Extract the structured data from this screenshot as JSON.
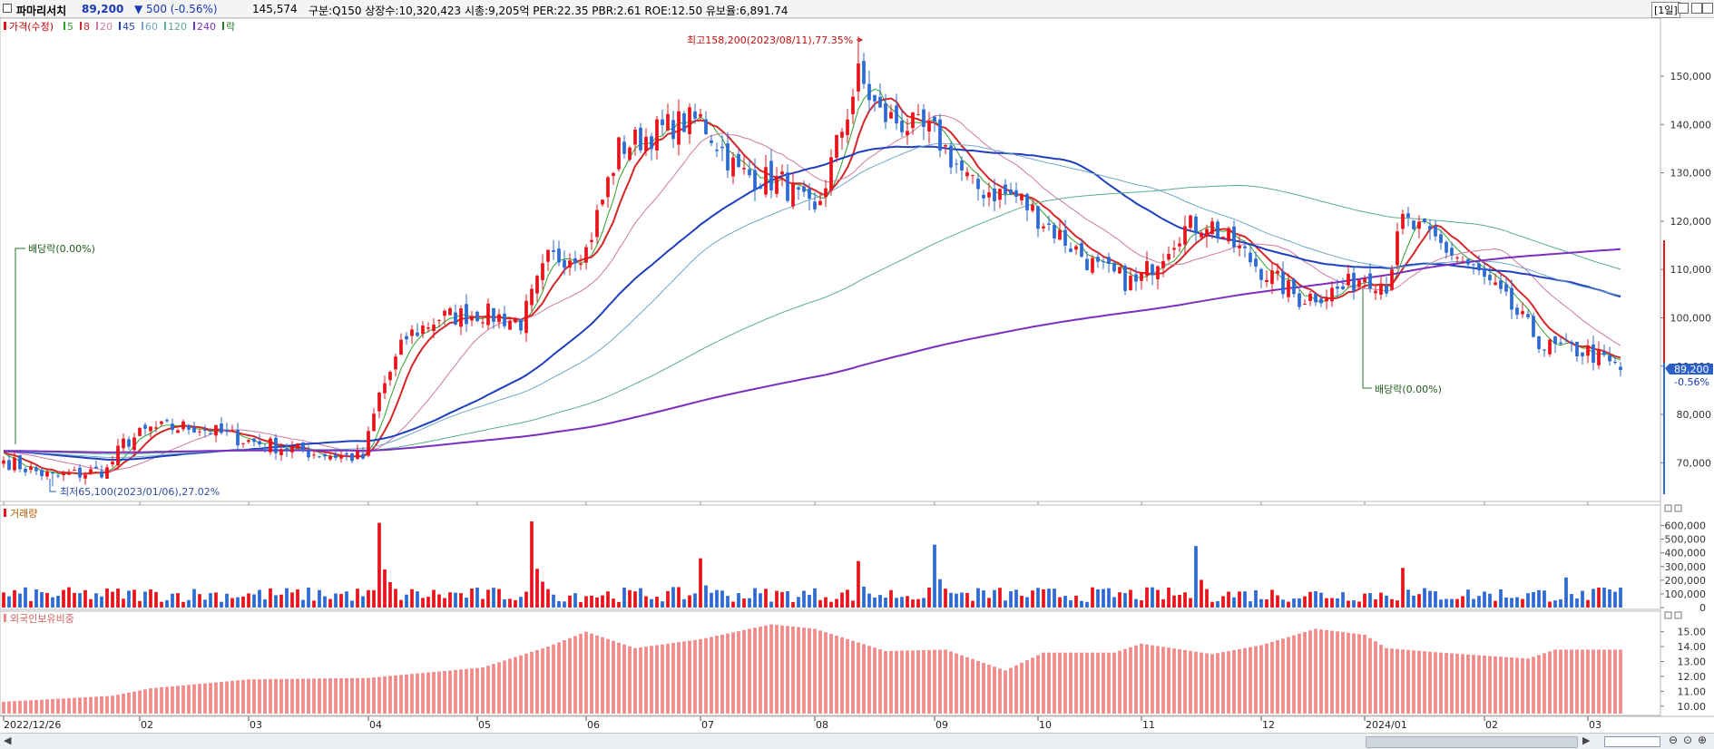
{
  "header": {
    "stock_name": "파마리서치",
    "price": "89,200",
    "change": "▼ 500 (-0.56%)",
    "volume": "145,574",
    "info": "구분:Q150  상장수:10,320,423  시총:9,205억  PER:22.35  PBR:2.61  ROE:12.50  유보율:6,891.74",
    "period": "[1일]"
  },
  "legend": {
    "price_label": "가격(수정)",
    "ma_items": [
      {
        "label": "5",
        "color": "#2ca02c"
      },
      {
        "label": "8",
        "color": "#d62728"
      },
      {
        "label": "20",
        "color": "#cc79a7"
      },
      {
        "label": "45",
        "color": "#1f3fbf"
      },
      {
        "label": "60",
        "color": "#6fa8c8"
      },
      {
        "label": "120",
        "color": "#5aae8c"
      },
      {
        "label": "240",
        "color": "#7b2fbe"
      }
    ],
    "event_label": "락",
    "volume_label": "거래량",
    "foreign_label": "외국인보유비중"
  },
  "annotations": {
    "high": "최고158,200(2023/08/11),77.35%",
    "low": "최저65,100(2023/01/06),27.02%",
    "dividend_1": "배당락(0.00%)",
    "dividend_2": "배당락(0.00%)",
    "last_price_tag": "89,200",
    "last_change_tag": "-0.56%"
  },
  "colors": {
    "up": "#e8141c",
    "down": "#2d6ad2",
    "foreign_bar": "#f08a8a",
    "axis_text": "#333333"
  },
  "chart_data": [
    {
      "type": "candlestick",
      "title": "가격(수정)",
      "ylim": [
        62000,
        162000
      ],
      "y_ticks": [
        "70,000",
        "80,000",
        "90,000",
        "100,000",
        "110,000",
        "120,000",
        "130,000",
        "140,000",
        "150,000"
      ],
      "x_ticks": [
        "2022/12/26",
        "02",
        "03",
        "04",
        "05",
        "06",
        "07",
        "08",
        "09",
        "10",
        "11",
        "12",
        "2024/01",
        "02",
        "03"
      ],
      "close_anchors": [
        [
          "2022/12/26",
          70500
        ],
        [
          "2023/01/06",
          67000
        ],
        [
          "2023/01/20",
          68500
        ],
        [
          "2023/01/27",
          74000
        ],
        [
          "2023/02/03",
          77000
        ],
        [
          "2023/02/15",
          77500
        ],
        [
          "2023/03/01",
          74500
        ],
        [
          "2023/03/20",
          72000
        ],
        [
          "2023/03/31",
          71000
        ],
        [
          "2023/04/05",
          84000
        ],
        [
          "2023/04/12",
          96000
        ],
        [
          "2023/04/20",
          100000
        ],
        [
          "2023/05/03",
          101000
        ],
        [
          "2023/05/15",
          99000
        ],
        [
          "2023/05/22",
          112000
        ],
        [
          "2023/06/01",
          114000
        ],
        [
          "2023/06/12",
          135000
        ],
        [
          "2023/06/26",
          140000
        ],
        [
          "2023/07/03",
          141000
        ],
        [
          "2023/07/12",
          130000
        ],
        [
          "2023/07/24",
          128000
        ],
        [
          "2023/08/01",
          121000
        ],
        [
          "2023/08/11",
          150000
        ],
        [
          "2023/08/18",
          142000
        ],
        [
          "2023/08/29",
          139000
        ],
        [
          "2023/09/01",
          138000
        ],
        [
          "2023/09/12",
          127000
        ],
        [
          "2023/09/22",
          125000
        ],
        [
          "2023/10/05",
          120000
        ],
        [
          "2023/10/20",
          110000
        ],
        [
          "2023/10/31",
          107000
        ],
        [
          "2023/11/10",
          118000
        ],
        [
          "2023/11/17",
          120000
        ],
        [
          "2023/12/01",
          110000
        ],
        [
          "2023/12/12",
          104000
        ],
        [
          "2023/12/22",
          106000
        ],
        [
          "2024/01/02",
          109000
        ],
        [
          "2024/01/08",
          107000
        ],
        [
          "2024/01/11",
          120000
        ],
        [
          "2024/01/19",
          116000
        ],
        [
          "2024/01/31",
          109000
        ],
        [
          "2024/02/08",
          102000
        ],
        [
          "2024/02/20",
          94000
        ],
        [
          "2024/03/04",
          93000
        ],
        [
          "2024/03/12",
          89200
        ]
      ],
      "high": {
        "date": "2023/08/11",
        "value": 158200
      },
      "low": {
        "date": "2023/01/06",
        "value": 65100
      },
      "last_close": 89200
    },
    {
      "type": "bar",
      "title": "거래량",
      "ylim": [
        0,
        650000
      ],
      "y_ticks": [
        "600,000",
        "500,000",
        "400,000",
        "300,000",
        "200,000",
        "100,000",
        "0"
      ],
      "spikes": [
        [
          "2023/04/05",
          620000
        ],
        [
          "2023/05/17",
          630000
        ],
        [
          "2023/07/03",
          360000
        ],
        [
          "2023/08/11",
          340000
        ],
        [
          "2023/09/01",
          460000
        ],
        [
          "2023/11/15",
          450000
        ],
        [
          "2024/01/11",
          290000
        ],
        [
          "2024/02/26",
          220000
        ]
      ],
      "typical_range": [
        40000,
        150000
      ],
      "last_value": 145574
    },
    {
      "type": "bar",
      "title": "외국인보유비중",
      "ylim": [
        9.5,
        16.2
      ],
      "y_ticks": [
        "15.00",
        "14.00",
        "13.00",
        "12.00",
        "11.00",
        "10.00"
      ],
      "anchors": [
        [
          "2022/12/26",
          10.3
        ],
        [
          "2023/01/25",
          10.7
        ],
        [
          "2023/02/03",
          11.2
        ],
        [
          "2023/03/01",
          11.8
        ],
        [
          "2023/04/03",
          11.9
        ],
        [
          "2023/05/03",
          12.6
        ],
        [
          "2023/05/20",
          14.0
        ],
        [
          "2023/06/01",
          15.0
        ],
        [
          "2023/06/15",
          13.9
        ],
        [
          "2023/07/03",
          14.5
        ],
        [
          "2023/07/20",
          15.5
        ],
        [
          "2023/08/01",
          15.2
        ],
        [
          "2023/08/20",
          13.7
        ],
        [
          "2023/09/05",
          13.8
        ],
        [
          "2023/09/20",
          12.4
        ],
        [
          "2023/10/05",
          13.6
        ],
        [
          "2023/10/25",
          13.6
        ],
        [
          "2023/11/01",
          14.2
        ],
        [
          "2023/11/20",
          13.5
        ],
        [
          "2023/12/01",
          14.1
        ],
        [
          "2023/12/15",
          15.2
        ],
        [
          "2024/01/02",
          14.8
        ],
        [
          "2024/01/08",
          13.9
        ],
        [
          "2024/01/20",
          13.6
        ],
        [
          "2024/02/15",
          13.2
        ],
        [
          "2024/02/22",
          13.8
        ],
        [
          "2024/03/12",
          13.8
        ]
      ]
    }
  ]
}
